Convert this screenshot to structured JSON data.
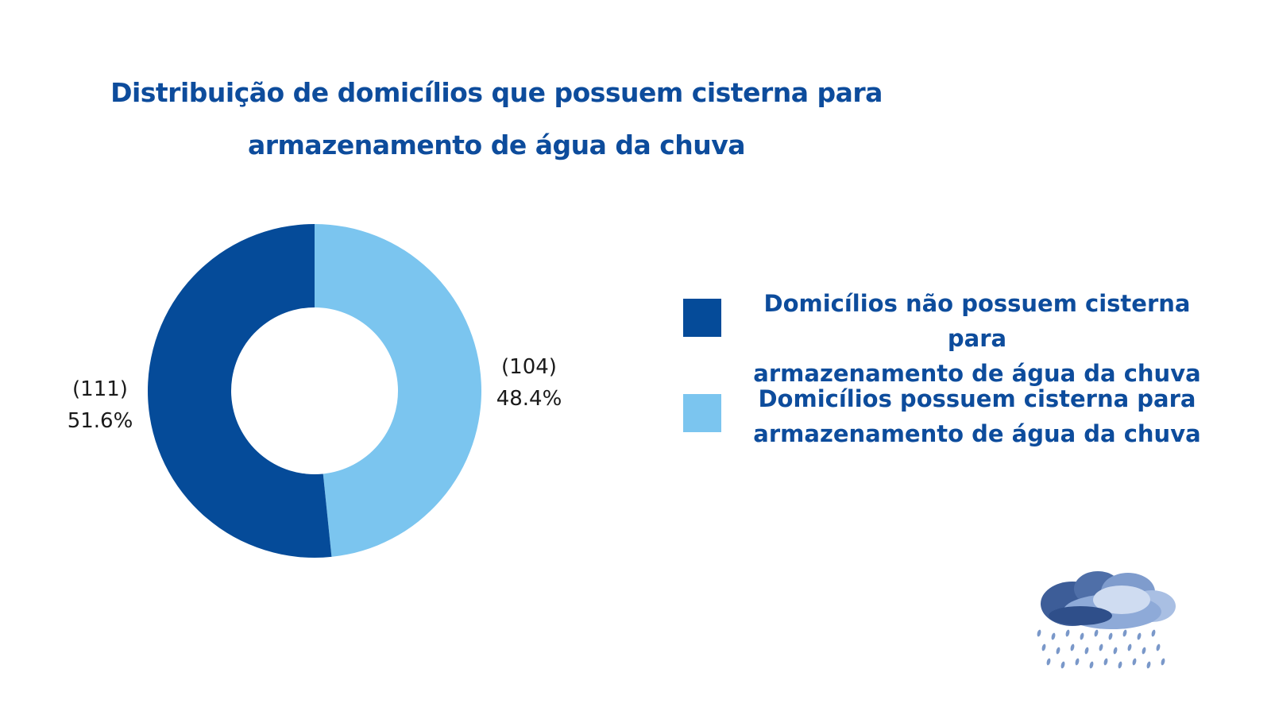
{
  "chart_data": {
    "type": "pie",
    "style": "donut",
    "title_lines": [
      "Distribuição de domicílios que possuem cisterna para",
      "armazenamento de água da chuva"
    ],
    "slices": [
      {
        "label_lines": [
          "Domicílios possuem cisterna para",
          "armazenamento de água da chuva"
        ],
        "value": 104,
        "count_label": "(104)",
        "percent_label": "48.4%",
        "color": "#7bc5ef"
      },
      {
        "label_lines": [
          "Domicílios não possuem cisterna para",
          "armazenamento de água da chuva"
        ],
        "value": 111,
        "count_label": "(111)",
        "percent_label": "51.6%",
        "color": "#054b99"
      }
    ],
    "legend_order": [
      1,
      0
    ],
    "legend_position": "right"
  },
  "decoration": {
    "icon": "rain-cloud-icon"
  },
  "colors": {
    "title": "#0d4c9c",
    "label_text": "#1a1a1a",
    "background": "#ffffff"
  }
}
